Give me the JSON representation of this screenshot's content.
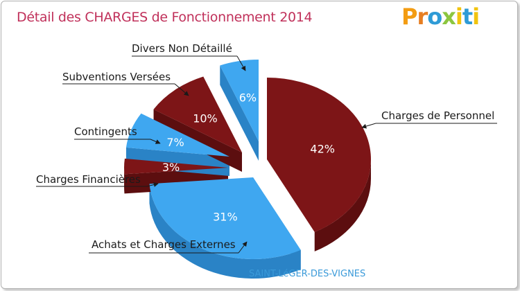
{
  "header": {
    "title": "Détail des CHARGES de Fonctionnement 2014",
    "logo_letters": [
      {
        "ch": "P",
        "color": "#f39c12"
      },
      {
        "ch": "r",
        "color": "#e67e22"
      },
      {
        "ch": "o",
        "color": "#2e9bd6"
      },
      {
        "ch": "x",
        "color": "#8cc63f"
      },
      {
        "ch": "i",
        "color": "#f1c40f"
      },
      {
        "ch": "t",
        "color": "#2e9bd6"
      },
      {
        "ch": "i",
        "color": "#f1c40f"
      }
    ]
  },
  "footer": {
    "commune": "SAINT-LéGER-DES-VIGNES"
  },
  "colors": {
    "blue": "#3fa7f0",
    "blue_dark": "#2a83c6",
    "maroon": "#7d1517",
    "maroon_dark": "#5c0e0f",
    "title": "#c0305a"
  },
  "chart_data": {
    "type": "pie",
    "title": "Détail des CHARGES de Fonctionnement 2014",
    "slices": [
      {
        "label": "Charges de Personnel",
        "value": 42,
        "pct_label": "42%"
      },
      {
        "label": "Achats et Charges Externes",
        "value": 31,
        "pct_label": "31%"
      },
      {
        "label": "Charges Financières",
        "value": 3,
        "pct_label": "3%"
      },
      {
        "label": "Contingents",
        "value": 7,
        "pct_label": "7%"
      },
      {
        "label": "Subventions Versées",
        "value": 10,
        "pct_label": "10%"
      },
      {
        "label": "Divers Non Détaillé",
        "value": 6,
        "pct_label": "6%"
      }
    ]
  }
}
